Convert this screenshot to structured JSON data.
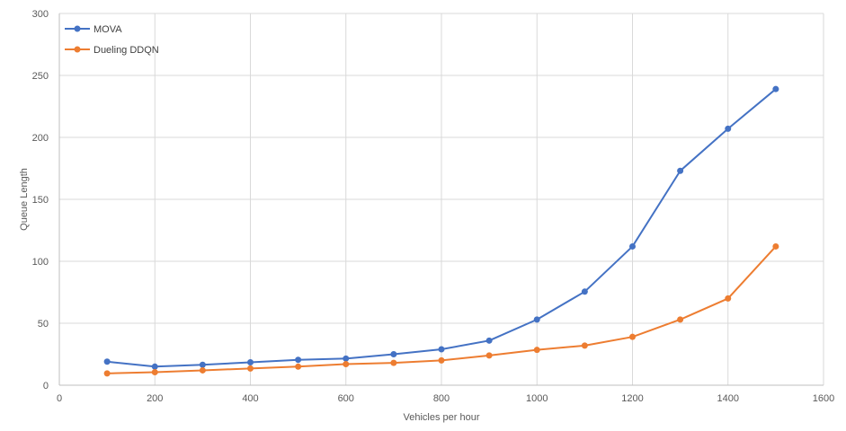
{
  "chart_data": {
    "type": "line",
    "title": "",
    "xlabel": "Vehicles per hour",
    "ylabel": "Queue Length",
    "xlim": [
      0,
      1600
    ],
    "ylim": [
      0,
      300
    ],
    "xticks": [
      0,
      200,
      400,
      600,
      800,
      1000,
      1200,
      1400,
      1600
    ],
    "yticks": [
      0,
      50,
      100,
      150,
      200,
      250,
      300
    ],
    "xtick_labels": [
      "0",
      "200",
      "400",
      "600",
      "800",
      "1000",
      "1200",
      "1400",
      "1600"
    ],
    "ytick_labels": [
      "0",
      "50",
      "100",
      "150",
      "200",
      "250",
      "300"
    ],
    "grid": true,
    "legend_position": "top-left",
    "x": [
      100,
      200,
      300,
      400,
      500,
      600,
      700,
      800,
      900,
      1000,
      1100,
      1200,
      1300,
      1400,
      1500
    ],
    "series": [
      {
        "name": "MOVA",
        "color": "#4472c4",
        "values": [
          19,
          15,
          16.5,
          18.5,
          20.5,
          21.5,
          25,
          29,
          36,
          53,
          75.5,
          112,
          173,
          207,
          239
        ]
      },
      {
        "name": "Dueling DDQN",
        "color": "#ed7d31",
        "values": [
          9.5,
          10.5,
          12,
          13.5,
          15,
          17,
          18,
          20,
          24,
          28.5,
          32,
          39,
          53,
          70,
          112
        ]
      }
    ]
  }
}
